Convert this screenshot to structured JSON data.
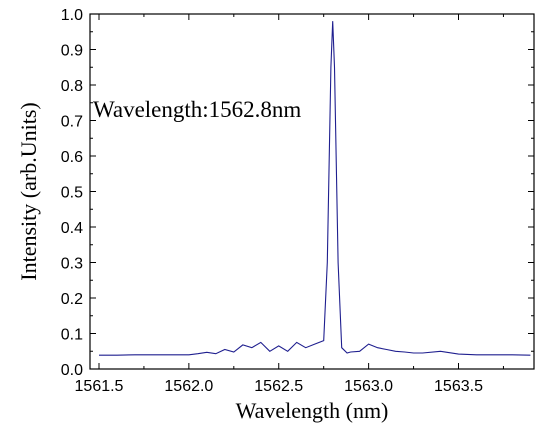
{
  "chart_data": {
    "type": "line",
    "title": "",
    "xlabel": "Wavelength (nm)",
    "ylabel": "Intensity (arb.Units)",
    "xlim": [
      1561.45,
      1563.92
    ],
    "ylim": [
      0.0,
      1.0
    ],
    "xticks": [
      1561.5,
      1562.0,
      1562.5,
      1563.0,
      1563.5
    ],
    "xtick_labels": [
      "1561.5",
      "1562.0",
      "1562.5",
      "1563.0",
      "1563.5"
    ],
    "yticks": [
      0.0,
      0.1,
      0.2,
      0.3,
      0.4,
      0.5,
      0.6,
      0.7,
      0.8,
      0.9,
      1.0
    ],
    "ytick_labels": [
      "0.0",
      "0.1",
      "0.2",
      "0.3",
      "0.4",
      "0.5",
      "0.6",
      "0.7",
      "0.8",
      "0.9",
      "1.0"
    ],
    "grid": false,
    "line_color": "#1f1f8f",
    "annotation": "Wavelength:1562.8nm",
    "series": [
      {
        "x": [
          1561.5,
          1561.6,
          1561.7,
          1561.8,
          1561.9,
          1562.0,
          1562.05,
          1562.1,
          1562.15,
          1562.2,
          1562.25,
          1562.3,
          1562.35,
          1562.4,
          1562.45,
          1562.5,
          1562.55,
          1562.6,
          1562.65,
          1562.7,
          1562.75,
          1562.77,
          1562.79,
          1562.8,
          1562.81,
          1562.83,
          1562.85,
          1562.88,
          1562.9,
          1562.95,
          1563.0,
          1563.05,
          1563.1,
          1563.15,
          1563.2,
          1563.25,
          1563.3,
          1563.4,
          1563.5,
          1563.6,
          1563.7,
          1563.8,
          1563.9
        ],
        "y": [
          0.039,
          0.039,
          0.04,
          0.04,
          0.04,
          0.04,
          0.043,
          0.047,
          0.043,
          0.055,
          0.048,
          0.068,
          0.06,
          0.075,
          0.05,
          0.065,
          0.05,
          0.075,
          0.06,
          0.07,
          0.08,
          0.3,
          0.85,
          0.98,
          0.85,
          0.3,
          0.06,
          0.045,
          0.048,
          0.05,
          0.07,
          0.06,
          0.055,
          0.05,
          0.048,
          0.045,
          0.045,
          0.05,
          0.042,
          0.04,
          0.04,
          0.04,
          0.039
        ]
      }
    ]
  }
}
